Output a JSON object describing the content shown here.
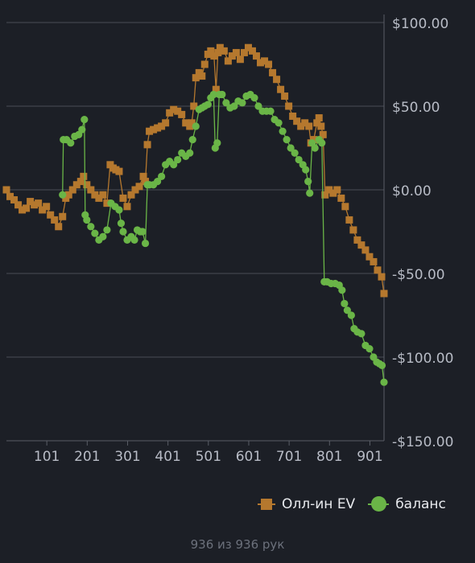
{
  "chart_data": {
    "type": "line",
    "x_ticks": [
      101,
      201,
      301,
      401,
      501,
      601,
      701,
      801,
      901
    ],
    "y_ticks": [
      100,
      50,
      0,
      -50,
      -100,
      -150
    ],
    "y_tick_labels": [
      "$100.00",
      "$50.00",
      "$0.00",
      "-$50.00",
      "-$100.00",
      "-$150.00"
    ],
    "xlim": [
      1,
      936
    ],
    "ylim": [
      -150,
      100
    ],
    "grid": "horizontal",
    "y_axis_side": "right",
    "legend_position": "bottom-right",
    "series": [
      {
        "name": "Олл-ин EV",
        "color": "#b5782e",
        "marker": "square",
        "points": [
          [
            1,
            0
          ],
          [
            10,
            -4
          ],
          [
            20,
            -6
          ],
          [
            30,
            -9
          ],
          [
            40,
            -12
          ],
          [
            50,
            -11
          ],
          [
            60,
            -7
          ],
          [
            70,
            -9
          ],
          [
            80,
            -8
          ],
          [
            90,
            -12
          ],
          [
            100,
            -10
          ],
          [
            110,
            -15
          ],
          [
            120,
            -18
          ],
          [
            130,
            -22
          ],
          [
            140,
            -16
          ],
          [
            148,
            -5
          ],
          [
            155,
            -3
          ],
          [
            165,
            0
          ],
          [
            175,
            3
          ],
          [
            185,
            5
          ],
          [
            192,
            8
          ],
          [
            200,
            3
          ],
          [
            210,
            0
          ],
          [
            220,
            -3
          ],
          [
            230,
            -5
          ],
          [
            240,
            -3
          ],
          [
            250,
            -8
          ],
          [
            258,
            15
          ],
          [
            265,
            13
          ],
          [
            272,
            12
          ],
          [
            280,
            11
          ],
          [
            290,
            -5
          ],
          [
            300,
            -10
          ],
          [
            310,
            -3
          ],
          [
            320,
            0
          ],
          [
            330,
            2
          ],
          [
            340,
            8
          ],
          [
            345,
            5
          ],
          [
            350,
            27
          ],
          [
            355,
            35
          ],
          [
            365,
            36
          ],
          [
            375,
            37
          ],
          [
            385,
            38
          ],
          [
            395,
            40
          ],
          [
            405,
            46
          ],
          [
            415,
            48
          ],
          [
            425,
            47
          ],
          [
            435,
            45
          ],
          [
            445,
            40
          ],
          [
            455,
            38
          ],
          [
            460,
            40
          ],
          [
            465,
            50
          ],
          [
            470,
            67
          ],
          [
            478,
            70
          ],
          [
            485,
            68
          ],
          [
            492,
            75
          ],
          [
            500,
            81
          ],
          [
            507,
            83
          ],
          [
            515,
            80
          ],
          [
            520,
            60
          ],
          [
            525,
            82
          ],
          [
            530,
            85
          ],
          [
            540,
            83
          ],
          [
            550,
            77
          ],
          [
            560,
            80
          ],
          [
            570,
            82
          ],
          [
            580,
            78
          ],
          [
            590,
            82
          ],
          [
            600,
            85
          ],
          [
            610,
            83
          ],
          [
            620,
            80
          ],
          [
            630,
            76
          ],
          [
            640,
            77
          ],
          [
            650,
            75
          ],
          [
            660,
            70
          ],
          [
            670,
            66
          ],
          [
            680,
            60
          ],
          [
            690,
            56
          ],
          [
            700,
            50
          ],
          [
            710,
            44
          ],
          [
            720,
            41
          ],
          [
            730,
            38
          ],
          [
            740,
            40
          ],
          [
            750,
            38
          ],
          [
            755,
            28
          ],
          [
            762,
            30
          ],
          [
            770,
            40
          ],
          [
            775,
            43
          ],
          [
            780,
            38
          ],
          [
            785,
            33
          ],
          [
            790,
            -3
          ],
          [
            800,
            0
          ],
          [
            810,
            -2
          ],
          [
            820,
            0
          ],
          [
            830,
            -5
          ],
          [
            840,
            -10
          ],
          [
            850,
            -18
          ],
          [
            860,
            -24
          ],
          [
            870,
            -30
          ],
          [
            880,
            -33
          ],
          [
            890,
            -36
          ],
          [
            900,
            -40
          ],
          [
            910,
            -43
          ],
          [
            920,
            -48
          ],
          [
            930,
            -52
          ],
          [
            936,
            -62
          ]
        ]
      },
      {
        "name": "баланс",
        "color": "#6ab547",
        "marker": "circle",
        "points": [
          [
            140,
            -3
          ],
          [
            142,
            30
          ],
          [
            150,
            30
          ],
          [
            160,
            28
          ],
          [
            170,
            32
          ],
          [
            180,
            33
          ],
          [
            188,
            36
          ],
          [
            194,
            42
          ],
          [
            196,
            -15
          ],
          [
            200,
            -18
          ],
          [
            210,
            -22
          ],
          [
            220,
            -26
          ],
          [
            230,
            -30
          ],
          [
            240,
            -28
          ],
          [
            250,
            -24
          ],
          [
            260,
            -8
          ],
          [
            270,
            -10
          ],
          [
            280,
            -12
          ],
          [
            285,
            -20
          ],
          [
            290,
            -25
          ],
          [
            300,
            -30
          ],
          [
            310,
            -28
          ],
          [
            318,
            -30
          ],
          [
            325,
            -24
          ],
          [
            332,
            -25
          ],
          [
            338,
            -25
          ],
          [
            345,
            -32
          ],
          [
            350,
            3
          ],
          [
            355,
            3
          ],
          [
            365,
            3
          ],
          [
            375,
            5
          ],
          [
            385,
            8
          ],
          [
            395,
            15
          ],
          [
            405,
            17
          ],
          [
            415,
            15
          ],
          [
            425,
            18
          ],
          [
            435,
            22
          ],
          [
            445,
            20
          ],
          [
            455,
            22
          ],
          [
            462,
            30
          ],
          [
            470,
            38
          ],
          [
            478,
            48
          ],
          [
            485,
            49
          ],
          [
            492,
            50
          ],
          [
            500,
            51
          ],
          [
            507,
            55
          ],
          [
            514,
            57
          ],
          [
            518,
            25
          ],
          [
            523,
            28
          ],
          [
            528,
            57
          ],
          [
            535,
            57
          ],
          [
            545,
            52
          ],
          [
            555,
            49
          ],
          [
            565,
            50
          ],
          [
            575,
            53
          ],
          [
            585,
            52
          ],
          [
            595,
            56
          ],
          [
            605,
            57
          ],
          [
            615,
            55
          ],
          [
            625,
            50
          ],
          [
            635,
            47
          ],
          [
            645,
            47
          ],
          [
            655,
            47
          ],
          [
            665,
            42
          ],
          [
            675,
            40
          ],
          [
            685,
            35
          ],
          [
            695,
            30
          ],
          [
            705,
            25
          ],
          [
            715,
            22
          ],
          [
            725,
            18
          ],
          [
            735,
            15
          ],
          [
            742,
            12
          ],
          [
            748,
            5
          ],
          [
            752,
            -2
          ],
          [
            758,
            28
          ],
          [
            765,
            25
          ],
          [
            775,
            30
          ],
          [
            782,
            28
          ],
          [
            788,
            -55
          ],
          [
            795,
            -55
          ],
          [
            805,
            -56
          ],
          [
            815,
            -56
          ],
          [
            825,
            -57
          ],
          [
            832,
            -60
          ],
          [
            838,
            -68
          ],
          [
            845,
            -72
          ],
          [
            855,
            -75
          ],
          [
            862,
            -83
          ],
          [
            870,
            -85
          ],
          [
            880,
            -86
          ],
          [
            890,
            -93
          ],
          [
            900,
            -95
          ],
          [
            910,
            -100
          ],
          [
            918,
            -103
          ],
          [
            925,
            -104
          ],
          [
            931,
            -105
          ],
          [
            936,
            -115
          ]
        ]
      }
    ]
  },
  "legend": {
    "ev_label": "Олл-ин EV",
    "balance_label": "баланс"
  },
  "footer_text": "936 из 936 рук"
}
